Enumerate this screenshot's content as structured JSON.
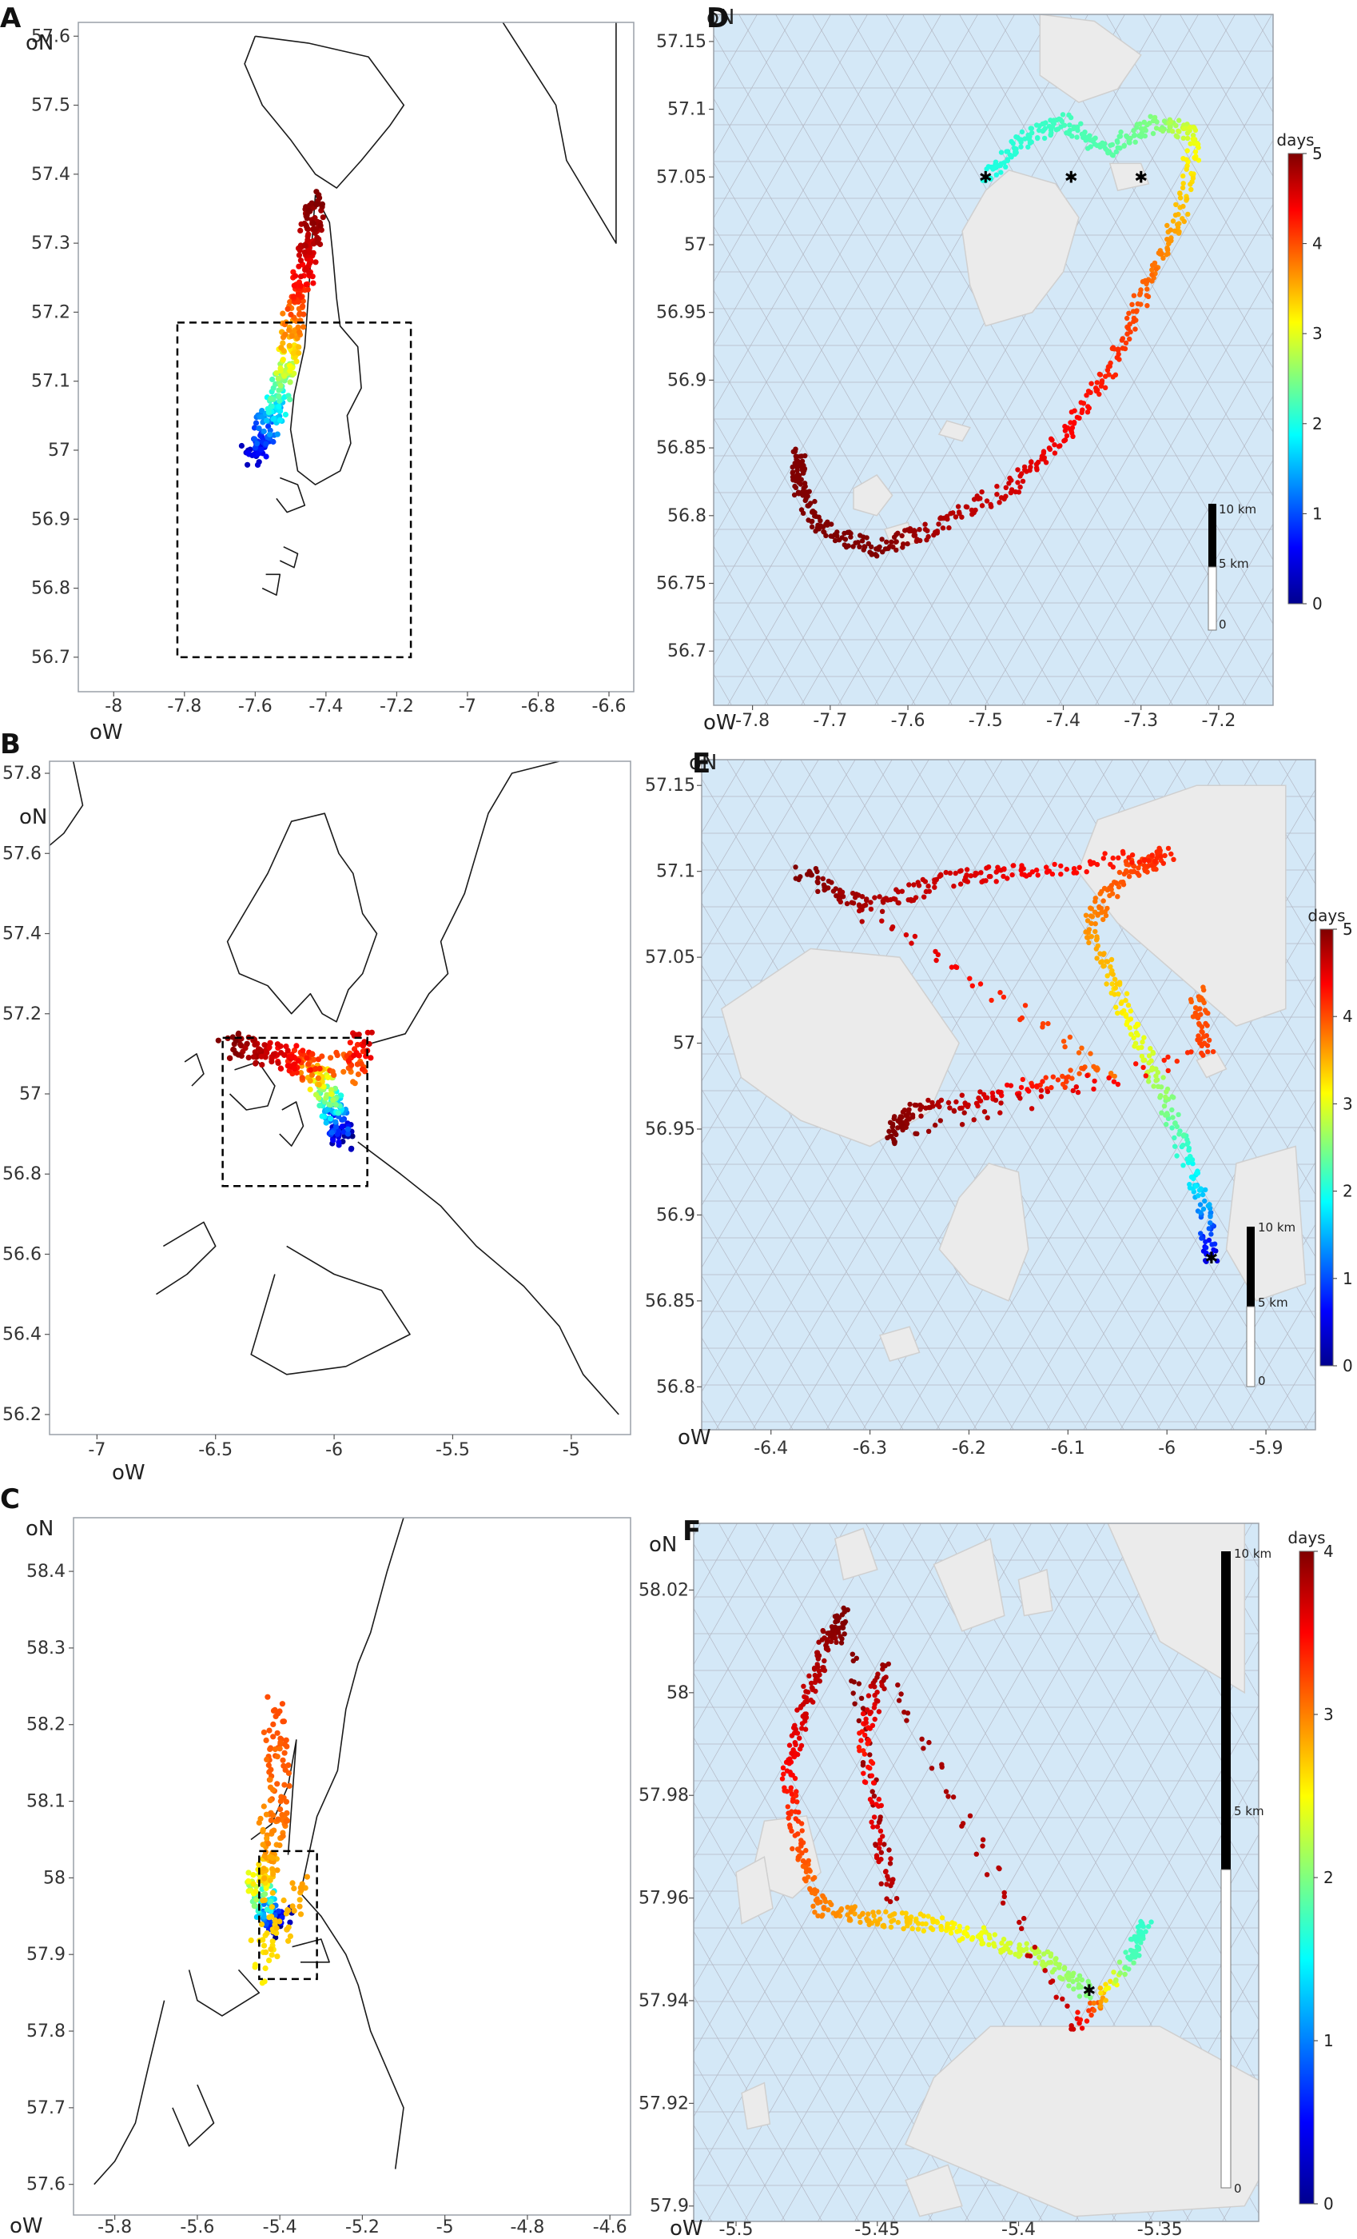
{
  "panels": [
    {
      "id": "A",
      "label": "A",
      "type": "overview",
      "xunit": "oW",
      "yunit": "oN",
      "xticks": [
        {
          "v": -8,
          "t": "-8"
        },
        {
          "v": -7.8,
          "t": "-7.8"
        },
        {
          "v": -7.6,
          "t": "-7.6"
        },
        {
          "v": -7.4,
          "t": "-7.4"
        },
        {
          "v": -7.2,
          "t": "-7.2"
        },
        {
          "v": -7,
          "t": "-7"
        },
        {
          "v": -6.8,
          "t": "-6.8"
        },
        {
          "v": -6.6,
          "t": "-6.6"
        }
      ],
      "yticks": [
        {
          "v": 57.6,
          "t": "57.6"
        },
        {
          "v": 57.5,
          "t": "57.5"
        },
        {
          "v": 57.4,
          "t": "57.4"
        },
        {
          "v": 57.3,
          "t": "57.3"
        },
        {
          "v": 57.2,
          "t": "57.2"
        },
        {
          "v": 57.1,
          "t": "57.1"
        },
        {
          "v": 57,
          "t": "57"
        },
        {
          "v": 56.9,
          "t": "56.9"
        },
        {
          "v": 56.8,
          "t": "56.8"
        },
        {
          "v": 56.7,
          "t": "56.7"
        }
      ]
    },
    {
      "id": "B",
      "label": "B",
      "type": "overview",
      "xunit": "oW",
      "yunit": "oN",
      "xticks": [
        {
          "v": -7,
          "t": "-7"
        },
        {
          "v": -6.5,
          "t": "-6.5"
        },
        {
          "v": -6,
          "t": "-6"
        },
        {
          "v": -5.5,
          "t": "-5.5"
        },
        {
          "v": -5,
          "t": "-5"
        }
      ],
      "yticks": [
        {
          "v": 57.8,
          "t": "57.8"
        },
        {
          "v": 57.6,
          "t": "57.6"
        },
        {
          "v": 57.4,
          "t": "57.4"
        },
        {
          "v": 57.2,
          "t": "57.2"
        },
        {
          "v": 57,
          "t": "57"
        },
        {
          "v": 56.8,
          "t": "56.8"
        },
        {
          "v": 56.6,
          "t": "56.6"
        },
        {
          "v": 56.4,
          "t": "56.4"
        },
        {
          "v": 56.2,
          "t": "56.2"
        }
      ]
    },
    {
      "id": "C",
      "label": "C",
      "type": "overview",
      "xunit": "oW",
      "yunit": "oN",
      "xticks": [
        {
          "v": -5.8,
          "t": "-5.8"
        },
        {
          "v": -5.6,
          "t": "-5.6"
        },
        {
          "v": -5.4,
          "t": "-5.4"
        },
        {
          "v": -5.2,
          "t": "-5.2"
        },
        {
          "v": -5,
          "t": "-5"
        },
        {
          "v": -4.8,
          "t": "-4.8"
        },
        {
          "v": -4.6,
          "t": "-4.6"
        }
      ],
      "yticks": [
        {
          "v": 58.4,
          "t": "58.4"
        },
        {
          "v": 58.3,
          "t": "58.3"
        },
        {
          "v": 58.2,
          "t": "58.2"
        },
        {
          "v": 58.1,
          "t": "58.1"
        },
        {
          "v": 58,
          "t": "58"
        },
        {
          "v": 57.9,
          "t": "57.9"
        },
        {
          "v": 57.8,
          "t": "57.8"
        },
        {
          "v": 57.7,
          "t": "57.7"
        },
        {
          "v": 57.6,
          "t": "57.6"
        }
      ]
    },
    {
      "id": "D",
      "label": "D",
      "type": "zoom",
      "xunit": "oW",
      "yunit": "oN",
      "colorbar_label": "days",
      "colorbar_ticks": [
        {
          "v": 5,
          "t": "5"
        },
        {
          "v": 4,
          "t": "4"
        },
        {
          "v": 3,
          "t": "3"
        },
        {
          "v": 2,
          "t": "2"
        },
        {
          "v": 1,
          "t": "1"
        },
        {
          "v": 0,
          "t": "0"
        }
      ],
      "scalebar": {
        "labels": [
          "10 km",
          "5 km",
          "0"
        ]
      },
      "xticks": [
        {
          "v": -7.8,
          "t": "-7.8"
        },
        {
          "v": -7.7,
          "t": "-7.7"
        },
        {
          "v": -7.6,
          "t": "-7.6"
        },
        {
          "v": -7.5,
          "t": "-7.5"
        },
        {
          "v": -7.4,
          "t": "-7.4"
        },
        {
          "v": -7.3,
          "t": "-7.3"
        },
        {
          "v": -7.2,
          "t": "-7.2"
        }
      ],
      "yticks": [
        {
          "v": 57.15,
          "t": "57.15"
        },
        {
          "v": 57.1,
          "t": "57.1"
        },
        {
          "v": 57.05,
          "t": "57.05"
        },
        {
          "v": 57,
          "t": "57"
        },
        {
          "v": 56.95,
          "t": "56.95"
        },
        {
          "v": 56.9,
          "t": "56.9"
        },
        {
          "v": 56.85,
          "t": "56.85"
        },
        {
          "v": 56.8,
          "t": "56.8"
        },
        {
          "v": 56.75,
          "t": "56.75"
        },
        {
          "v": 56.7,
          "t": "56.7"
        }
      ]
    },
    {
      "id": "E",
      "label": "E",
      "type": "zoom",
      "xunit": "oW",
      "yunit": "oN",
      "colorbar_label": "days",
      "colorbar_ticks": [
        {
          "v": 5,
          "t": "5"
        },
        {
          "v": 4,
          "t": "4"
        },
        {
          "v": 3,
          "t": "3"
        },
        {
          "v": 2,
          "t": "2"
        },
        {
          "v": 1,
          "t": "1"
        },
        {
          "v": 0,
          "t": "0"
        }
      ],
      "scalebar": {
        "labels": [
          "10 km",
          "5 km",
          "0"
        ]
      },
      "xticks": [
        {
          "v": -6.4,
          "t": "-6.4"
        },
        {
          "v": -6.3,
          "t": "-6.3"
        },
        {
          "v": -6.2,
          "t": "-6.2"
        },
        {
          "v": -6.1,
          "t": "-6.1"
        },
        {
          "v": -6,
          "t": "-6"
        },
        {
          "v": -5.9,
          "t": "-5.9"
        }
      ],
      "yticks": [
        {
          "v": 57.15,
          "t": "57.15"
        },
        {
          "v": 57.1,
          "t": "57.1"
        },
        {
          "v": 57.05,
          "t": "57.05"
        },
        {
          "v": 57,
          "t": "57"
        },
        {
          "v": 56.95,
          "t": "56.95"
        },
        {
          "v": 56.9,
          "t": "56.9"
        },
        {
          "v": 56.85,
          "t": "56.85"
        },
        {
          "v": 56.8,
          "t": "56.8"
        }
      ]
    },
    {
      "id": "F",
      "label": "F",
      "type": "zoom",
      "xunit": "oW",
      "yunit": "oN",
      "colorbar_label": "days",
      "colorbar_ticks": [
        {
          "v": 4,
          "t": "4"
        },
        {
          "v": 3,
          "t": "3"
        },
        {
          "v": 2,
          "t": "2"
        },
        {
          "v": 1,
          "t": "1"
        },
        {
          "v": 0,
          "t": "0"
        }
      ],
      "scalebar": {
        "labels": [
          "10 km",
          "5 km",
          "0"
        ]
      },
      "xticks": [
        {
          "v": -5.5,
          "t": "-5.5"
        },
        {
          "v": -5.45,
          "t": "-5.45"
        },
        {
          "v": -5.4,
          "t": "-5.4"
        },
        {
          "v": -5.35,
          "t": "-5.35"
        }
      ],
      "yticks": [
        {
          "v": 58.02,
          "t": "58.02"
        },
        {
          "v": 58,
          "t": "58"
        },
        {
          "v": 57.98,
          "t": "57.98"
        },
        {
          "v": 57.96,
          "t": "57.96"
        },
        {
          "v": 57.94,
          "t": "57.94"
        },
        {
          "v": 57.92,
          "t": "57.92"
        },
        {
          "v": 57.9,
          "t": "57.9"
        }
      ]
    }
  ],
  "colors": {
    "sea": "#d4e8f7",
    "mesh": "#b3b8c4",
    "land": "#ebebeb",
    "coast": "#1a1a1a",
    "colormap": "jet"
  },
  "chart_data": [
    {
      "panel": "A",
      "type": "scatter",
      "trajectory": [
        {
          "lon": -7.61,
          "lat": 56.99,
          "days": 0.3
        },
        {
          "lon": -7.58,
          "lat": 57.02,
          "days": 0.9
        },
        {
          "lon": -7.55,
          "lat": 57.05,
          "days": 1.6
        },
        {
          "lon": -7.53,
          "lat": 57.09,
          "days": 2.3
        },
        {
          "lon": -7.51,
          "lat": 57.13,
          "days": 3.0
        },
        {
          "lon": -7.5,
          "lat": 57.17,
          "days": 3.6
        },
        {
          "lon": -7.48,
          "lat": 57.22,
          "days": 4.1
        },
        {
          "lon": -7.46,
          "lat": 57.27,
          "days": 4.5
        },
        {
          "lon": -7.44,
          "lat": 57.32,
          "days": 4.8
        },
        {
          "lon": -7.43,
          "lat": 57.36,
          "days": 5.0
        }
      ]
    },
    {
      "panel": "B",
      "type": "scatter",
      "trajectory": [
        {
          "lon": -5.96,
          "lat": 56.88,
          "days": 0.0
        },
        {
          "lon": -5.98,
          "lat": 56.93,
          "days": 1.0
        },
        {
          "lon": -6.01,
          "lat": 56.98,
          "days": 2.0
        },
        {
          "lon": -6.05,
          "lat": 57.03,
          "days": 3.0
        },
        {
          "lon": -6.12,
          "lat": 57.07,
          "days": 4.0
        },
        {
          "lon": -6.25,
          "lat": 57.1,
          "days": 4.6
        },
        {
          "lon": -6.45,
          "lat": 57.12,
          "days": 5.0
        },
        {
          "lon": -5.92,
          "lat": 57.06,
          "days": 3.8
        },
        {
          "lon": -5.88,
          "lat": 57.13,
          "days": 4.6
        }
      ]
    },
    {
      "panel": "C",
      "type": "scatter",
      "trajectory": [
        {
          "lon": -5.39,
          "lat": 57.94,
          "days": 0.0
        },
        {
          "lon": -5.43,
          "lat": 57.96,
          "days": 1.5
        },
        {
          "lon": -5.46,
          "lat": 57.99,
          "days": 3.0
        },
        {
          "lon": -5.42,
          "lat": 58.02,
          "days": 3.6
        },
        {
          "lon": -5.4,
          "lat": 58.1,
          "days": 3.9
        },
        {
          "lon": -5.41,
          "lat": 58.22,
          "days": 4.0
        },
        {
          "lon": -5.45,
          "lat": 57.88,
          "days": 3.2
        },
        {
          "lon": -5.34,
          "lat": 57.99,
          "days": 3.6
        }
      ]
    },
    {
      "panel": "D",
      "type": "scatter",
      "release_points": [
        {
          "lon": -7.5,
          "lat": 57.05
        },
        {
          "lon": -7.39,
          "lat": 57.05
        },
        {
          "lon": -7.3,
          "lat": 57.05
        }
      ],
      "trajectory": [
        {
          "lon": -7.5,
          "lat": 57.05,
          "days": 2.0
        },
        {
          "lon": -7.45,
          "lat": 57.08,
          "days": 2.1
        },
        {
          "lon": -7.4,
          "lat": 57.09,
          "days": 2.2
        },
        {
          "lon": -7.34,
          "lat": 57.07,
          "days": 2.3
        },
        {
          "lon": -7.28,
          "lat": 57.09,
          "days": 2.5
        },
        {
          "lon": -7.23,
          "lat": 57.08,
          "days": 3.0
        },
        {
          "lon": -7.25,
          "lat": 57.02,
          "days": 3.5
        },
        {
          "lon": -7.29,
          "lat": 56.97,
          "days": 3.9
        },
        {
          "lon": -7.34,
          "lat": 56.91,
          "days": 4.2
        },
        {
          "lon": -7.4,
          "lat": 56.86,
          "days": 4.4
        },
        {
          "lon": -7.47,
          "lat": 56.82,
          "days": 4.6
        },
        {
          "lon": -7.57,
          "lat": 56.79,
          "days": 4.8
        },
        {
          "lon": -7.64,
          "lat": 56.775,
          "days": 5.0
        },
        {
          "lon": -7.71,
          "lat": 56.79,
          "days": 5.0
        },
        {
          "lon": -7.74,
          "lat": 56.82,
          "days": 5.0
        },
        {
          "lon": -7.74,
          "lat": 56.845,
          "days": 5.0
        }
      ]
    },
    {
      "panel": "E",
      "type": "scatter",
      "release_points": [
        {
          "lon": -5.955,
          "lat": 56.875
        }
      ],
      "trajectory": [
        {
          "lon": -5.955,
          "lat": 56.875,
          "days": 0.4
        },
        {
          "lon": -5.965,
          "lat": 56.91,
          "days": 1.6
        },
        {
          "lon": -5.99,
          "lat": 56.95,
          "days": 2.3
        },
        {
          "lon": -6.02,
          "lat": 56.99,
          "days": 2.9
        },
        {
          "lon": -6.05,
          "lat": 57.03,
          "days": 3.3
        },
        {
          "lon": -6.08,
          "lat": 57.07,
          "days": 3.7
        },
        {
          "lon": -6.04,
          "lat": 57.1,
          "days": 4.0
        },
        {
          "lon": -6.0,
          "lat": 57.11,
          "days": 4.2
        },
        {
          "lon": -6.14,
          "lat": 57.1,
          "days": 4.4
        },
        {
          "lon": -6.22,
          "lat": 57.095,
          "days": 4.6
        },
        {
          "lon": -6.3,
          "lat": 57.08,
          "days": 4.8
        },
        {
          "lon": -6.37,
          "lat": 57.1,
          "days": 5.0
        },
        {
          "lon": -6.06,
          "lat": 56.985,
          "days": 3.8
        },
        {
          "lon": -6.17,
          "lat": 56.97,
          "days": 4.5
        },
        {
          "lon": -6.26,
          "lat": 56.96,
          "days": 4.9
        },
        {
          "lon": -6.28,
          "lat": 56.945,
          "days": 5.0
        },
        {
          "lon": -5.96,
          "lat": 56.995,
          "days": 4.1
        },
        {
          "lon": -5.97,
          "lat": 57.03,
          "days": 3.9
        }
      ]
    },
    {
      "panel": "F",
      "type": "scatter",
      "release_points": [
        {
          "lon": -5.375,
          "lat": 57.942
        }
      ],
      "trajectory": [
        {
          "lon": -5.375,
          "lat": 57.942,
          "days": 2.0
        },
        {
          "lon": -5.39,
          "lat": 57.948,
          "days": 2.2
        },
        {
          "lon": -5.41,
          "lat": 57.952,
          "days": 2.4
        },
        {
          "lon": -5.43,
          "lat": 57.955,
          "days": 2.6
        },
        {
          "lon": -5.45,
          "lat": 57.956,
          "days": 2.8
        },
        {
          "lon": -5.47,
          "lat": 57.958,
          "days": 3.0
        },
        {
          "lon": -5.478,
          "lat": 57.97,
          "days": 3.2
        },
        {
          "lon": -5.482,
          "lat": 57.985,
          "days": 3.5
        },
        {
          "lon": -5.475,
          "lat": 57.998,
          "days": 3.7
        },
        {
          "lon": -5.468,
          "lat": 58.01,
          "days": 3.9
        },
        {
          "lon": -5.462,
          "lat": 58.015,
          "days": 4.0
        },
        {
          "lon": -5.445,
          "lat": 57.96,
          "days": 3.8
        },
        {
          "lon": -5.455,
          "lat": 57.99,
          "days": 3.4
        },
        {
          "lon": -5.448,
          "lat": 58.005,
          "days": 3.9
        },
        {
          "lon": -5.38,
          "lat": 57.935,
          "days": 3.7
        },
        {
          "lon": -5.36,
          "lat": 57.948,
          "days": 1.8
        },
        {
          "lon": -5.355,
          "lat": 57.955,
          "days": 1.7
        }
      ]
    }
  ]
}
